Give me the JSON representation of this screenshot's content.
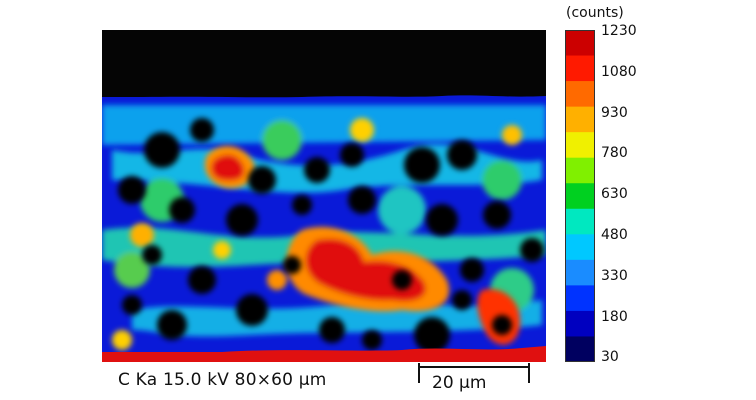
{
  "colorbar": {
    "units": "(counts)",
    "ticks": [
      "1230",
      "1080",
      "930",
      "780",
      "630",
      "480",
      "330",
      "180",
      "30"
    ],
    "stops": [
      "#cc0000",
      "#ff1a00",
      "#ff6a00",
      "#ffb000",
      "#f0f000",
      "#80f000",
      "#00d020",
      "#00e8c0",
      "#00c8ff",
      "#1a8cff",
      "#0033ff",
      "#0000c0",
      "#000060"
    ]
  },
  "map": {
    "dark_color": "#050505",
    "low_color": "#0a1ad8",
    "bright_color": "#e01010"
  },
  "caption": "C Ka 15.0 kV 80×60 µm",
  "scale_label": "20 µm"
}
